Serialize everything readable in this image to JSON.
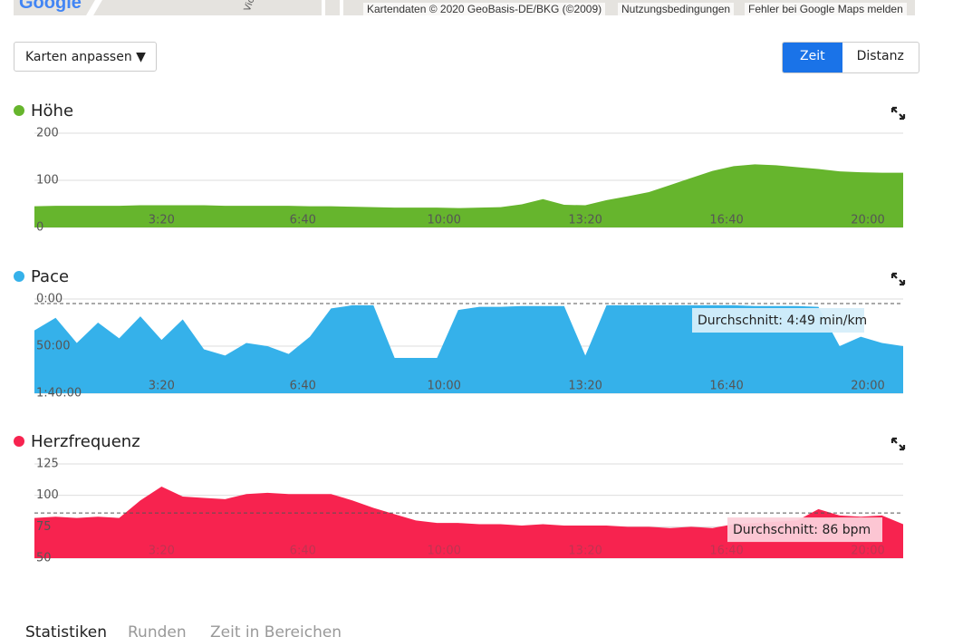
{
  "map": {
    "logo": "Google",
    "street": "Viol",
    "attribution": "Kartendaten © 2020 GeoBasis-DE/BKG (©2009)",
    "terms": "Nutzungsbedingungen",
    "report": "Fehler bei Google Maps melden"
  },
  "controls": {
    "dropdown": "Karten anpassen ▼",
    "toggle": [
      "Zeit",
      "Distanz"
    ]
  },
  "tabs": [
    "Statistiken",
    "Runden",
    "Zeit in Bereichen"
  ],
  "chart_data": [
    {
      "type": "area",
      "title": "Höhe",
      "color": "#66b52d",
      "x": [
        20,
        50,
        80,
        110,
        140,
        170,
        200,
        230,
        260,
        290,
        320,
        350,
        380,
        410,
        440,
        470,
        500,
        530,
        560,
        590,
        620,
        650,
        680,
        710,
        740,
        770,
        800,
        830,
        860,
        890,
        920,
        950,
        980,
        1010,
        1040,
        1070,
        1100,
        1130,
        1160,
        1190,
        1220,
        1250
      ],
      "values": [
        45,
        46,
        46,
        46,
        46,
        47,
        47,
        47,
        47,
        46,
        46,
        46,
        46,
        45,
        45,
        44,
        43,
        42,
        42,
        42,
        41,
        42,
        43,
        49,
        60,
        48,
        47,
        58,
        66,
        75,
        90,
        105,
        120,
        130,
        134,
        132,
        128,
        124,
        119,
        117,
        116,
        116
      ],
      "xlim": [
        20,
        1250
      ],
      "xticks": [
        {
          "value": 200,
          "label": "3:20"
        },
        {
          "value": 400,
          "label": "6:40"
        },
        {
          "value": 600,
          "label": "10:00"
        },
        {
          "value": 800,
          "label": "13:20"
        },
        {
          "value": 1000,
          "label": "16:40"
        },
        {
          "value": 1200,
          "label": "20:00"
        }
      ],
      "ylim": [
        0,
        200
      ],
      "yticks": [
        0,
        100,
        200
      ],
      "grid": true
    },
    {
      "type": "area",
      "title": "Pace",
      "color": "#35b1ea",
      "inverted": true,
      "x": [
        20,
        50,
        80,
        110,
        140,
        170,
        200,
        230,
        260,
        290,
        320,
        350,
        380,
        410,
        440,
        470,
        500,
        530,
        560,
        590,
        620,
        650,
        680,
        710,
        740,
        770,
        800,
        830,
        860,
        890,
        920,
        950,
        980,
        1010,
        1040,
        1070,
        1100,
        1130,
        1160,
        1190,
        1220,
        1250
      ],
      "values": [
        2000,
        1200,
        2800,
        1500,
        2500,
        1100,
        2600,
        1300,
        3200,
        3600,
        2800,
        3000,
        3500,
        2400,
        600,
        400,
        400,
        3750,
        3750,
        3750,
        700,
        500,
        500,
        450,
        450,
        450,
        3600,
        400,
        400,
        400,
        400,
        400,
        400,
        400,
        450,
        450,
        450,
        500,
        3000,
        2400,
        2800,
        3000
      ],
      "xlim": [
        20,
        1250
      ],
      "xticks": [
        {
          "value": 200,
          "label": "3:20"
        },
        {
          "value": 400,
          "label": "6:40"
        },
        {
          "value": 600,
          "label": "10:00"
        },
        {
          "value": 800,
          "label": "13:20"
        },
        {
          "value": 1000,
          "label": "16:40"
        },
        {
          "value": 1200,
          "label": "20:00"
        }
      ],
      "ylim": [
        0,
        6000
      ],
      "yticks": [
        {
          "value": 0,
          "label": "0:00"
        },
        {
          "value": 3000,
          "label": "50:00"
        },
        {
          "value": 6000,
          "label": "1:40:00"
        }
      ],
      "grid": true,
      "average": 289,
      "average_label": "Durchschnitt: 4:49 min/km"
    },
    {
      "type": "area",
      "title": "Herzfrequenz",
      "color": "#f7234f",
      "x": [
        20,
        50,
        80,
        110,
        140,
        170,
        200,
        230,
        260,
        290,
        320,
        350,
        380,
        410,
        440,
        470,
        500,
        530,
        560,
        590,
        620,
        650,
        680,
        710,
        740,
        770,
        800,
        830,
        860,
        890,
        920,
        950,
        980,
        1010,
        1040,
        1070,
        1100,
        1130,
        1160,
        1190,
        1220,
        1250
      ],
      "values": [
        82,
        83,
        82,
        83,
        82,
        96,
        107,
        99,
        98,
        97,
        101,
        102,
        101,
        101,
        101,
        96,
        90,
        85,
        80,
        78,
        78,
        77,
        77,
        76,
        77,
        76,
        76,
        76,
        75,
        75,
        74,
        75,
        74,
        77,
        78,
        79,
        80,
        89,
        84,
        83,
        84,
        77
      ],
      "xlim": [
        20,
        1250
      ],
      "xticks": [
        {
          "value": 200,
          "label": "3:20"
        },
        {
          "value": 400,
          "label": "6:40"
        },
        {
          "value": 600,
          "label": "10:00"
        },
        {
          "value": 800,
          "label": "13:20"
        },
        {
          "value": 1000,
          "label": "16:40"
        },
        {
          "value": 1200,
          "label": "20:00"
        }
      ],
      "ylim": [
        50,
        125
      ],
      "yticks": [
        50,
        75,
        100,
        125
      ],
      "grid": true,
      "average": 86,
      "average_label": "Durchschnitt: 86 bpm"
    }
  ]
}
